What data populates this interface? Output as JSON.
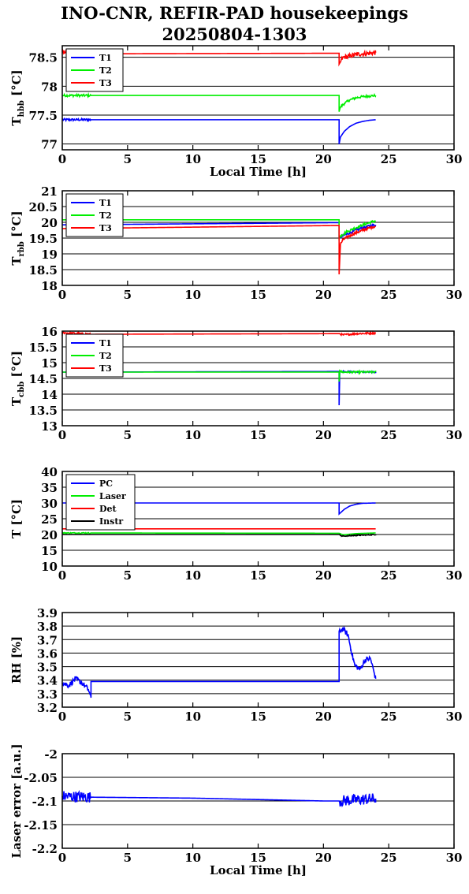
{
  "header": {
    "title_line1": "INO-CNR, REFIR-PAD housekeepings",
    "title_line2": "20250804-1303"
  },
  "colors": {
    "blue": "#0000ff",
    "green": "#00ee00",
    "red": "#ff0000",
    "black": "#000000"
  },
  "chart_data": [
    {
      "type": "line",
      "xlabel": "Local Time [h]",
      "ylabel_main": "T",
      "ylabel_sub": "hbb",
      "ylabel_unit": "[°C]",
      "xlim": [
        0,
        30
      ],
      "ylim": [
        76.9,
        78.7
      ],
      "xticks": [
        0,
        5,
        10,
        15,
        20,
        25,
        30
      ],
      "yticks": [
        77,
        77.5,
        78,
        78.5
      ],
      "ytick_labels": [
        "77",
        "77.5",
        "78",
        "78.5"
      ],
      "grid": true,
      "legend": "top-left",
      "series": [
        {
          "name": "T1",
          "color": "blue",
          "x": [
            0,
            2.2,
            21.2,
            21.2,
            21.3,
            21.6,
            22.0,
            22.5,
            23.0,
            23.5,
            24.0
          ],
          "y": [
            77.42,
            77.42,
            77.42,
            77.0,
            77.12,
            77.22,
            77.3,
            77.36,
            77.39,
            77.41,
            77.42
          ],
          "noise": [
            [
              0,
              2.2,
              0.02
            ]
          ]
        },
        {
          "name": "T2",
          "color": "green",
          "x": [
            0,
            2.2,
            21.2,
            21.2,
            21.3,
            21.6,
            22.0,
            22.5,
            23.0,
            23.5,
            24.0
          ],
          "y": [
            77.84,
            77.84,
            77.84,
            77.56,
            77.64,
            77.7,
            77.76,
            77.8,
            77.82,
            77.83,
            77.84
          ],
          "noise": [
            [
              0,
              2.2,
              0.02
            ],
            [
              21.3,
              24.0,
              0.02
            ]
          ]
        },
        {
          "name": "T3",
          "color": "red",
          "x": [
            0,
            2.2,
            21.2,
            21.2,
            21.5,
            22.0,
            22.5,
            23.0,
            23.5,
            24.0
          ],
          "y": [
            78.59,
            78.56,
            78.57,
            78.38,
            78.5,
            78.52,
            78.55,
            78.56,
            78.57,
            78.58
          ],
          "noise": [
            [
              0,
              2.2,
              0.03
            ],
            [
              21.3,
              24.0,
              0.04
            ]
          ]
        }
      ]
    },
    {
      "type": "line",
      "xlabel": "",
      "ylabel_main": "T",
      "ylabel_sub": "rbb",
      "ylabel_unit": "[°C]",
      "xlim": [
        0,
        30
      ],
      "ylim": [
        18,
        21
      ],
      "xticks": [
        0,
        5,
        10,
        15,
        20,
        25,
        30
      ],
      "yticks": [
        18,
        18.5,
        19,
        19.5,
        20,
        20.5,
        21
      ],
      "ytick_labels": [
        "18",
        "18.5",
        "19",
        "19.5",
        "20",
        "20.5",
        "21"
      ],
      "grid": true,
      "legend": "top-left",
      "series": [
        {
          "name": "T1",
          "color": "blue",
          "x": [
            0,
            21.2,
            21.2,
            21.4,
            21.8,
            22.3,
            22.8,
            23.3,
            24.0
          ],
          "y": [
            19.92,
            19.99,
            19.5,
            19.55,
            19.63,
            19.72,
            19.8,
            19.86,
            19.92
          ],
          "noise": [
            [
              21.2,
              24.0,
              0.04
            ]
          ]
        },
        {
          "name": "T2",
          "color": "green",
          "x": [
            0,
            21.2,
            21.2,
            21.4,
            21.8,
            22.3,
            22.8,
            23.3,
            24.0
          ],
          "y": [
            20.08,
            20.08,
            19.5,
            19.6,
            19.7,
            19.8,
            19.88,
            19.96,
            20.05
          ],
          "noise": [
            [
              21.2,
              24.0,
              0.04
            ]
          ]
        },
        {
          "name": "T3",
          "color": "red",
          "x": [
            0,
            21.2,
            21.2,
            21.3,
            21.5,
            21.9,
            22.4,
            23.0,
            23.5,
            24.0
          ],
          "y": [
            19.8,
            19.9,
            18.35,
            19.3,
            19.45,
            19.55,
            19.65,
            19.75,
            19.82,
            19.88
          ],
          "noise": [
            [
              21.3,
              24.0,
              0.04
            ]
          ]
        }
      ]
    },
    {
      "type": "line",
      "xlabel": "",
      "ylabel_main": "T",
      "ylabel_sub": "cbb",
      "ylabel_unit": "[°C]",
      "xlim": [
        0,
        30
      ],
      "ylim": [
        13,
        16
      ],
      "xticks": [
        0,
        5,
        10,
        15,
        20,
        25,
        30
      ],
      "yticks": [
        13,
        13.5,
        14,
        14.5,
        15,
        15.5,
        16
      ],
      "ytick_labels": [
        "13",
        "13.5",
        "14",
        "14.5",
        "15",
        "15.5",
        "16"
      ],
      "grid": true,
      "legend": "top-left",
      "series": [
        {
          "name": "T1",
          "color": "blue",
          "x": [
            0,
            21.2,
            21.2,
            21.25,
            21.4,
            24.0
          ],
          "y": [
            14.7,
            14.72,
            13.65,
            14.7,
            14.72,
            14.7
          ],
          "noise": [
            [
              21.3,
              24.0,
              0.02
            ]
          ]
        },
        {
          "name": "T2",
          "color": "green",
          "x": [
            0,
            21.2,
            21.2,
            21.25,
            21.4,
            24.0
          ],
          "y": [
            14.7,
            14.7,
            14.4,
            14.75,
            14.7,
            14.7
          ],
          "noise": [
            [
              21.3,
              24.0,
              0.03
            ]
          ]
        },
        {
          "name": "T3",
          "color": "red",
          "x": [
            0,
            2.2,
            21.2,
            21.5,
            22.5,
            24.0
          ],
          "y": [
            15.95,
            15.9,
            15.92,
            15.88,
            15.92,
            15.94
          ],
          "noise": [
            [
              0,
              2.2,
              0.03
            ],
            [
              21.2,
              24.0,
              0.03
            ]
          ]
        }
      ]
    },
    {
      "type": "line",
      "xlabel": "",
      "ylabel_main": "T [°C]",
      "ylabel_sub": "",
      "ylabel_unit": "",
      "xlim": [
        0,
        30
      ],
      "ylim": [
        10,
        40
      ],
      "xticks": [
        0,
        5,
        10,
        15,
        20,
        25,
        30
      ],
      "yticks": [
        10,
        15,
        20,
        25,
        30,
        35,
        40
      ],
      "ytick_labels": [
        "10",
        "15",
        "20",
        "25",
        "30",
        "35",
        "40"
      ],
      "grid": true,
      "legend": "top-left",
      "series": [
        {
          "name": "PC",
          "color": "blue",
          "x": [
            0,
            21.2,
            21.2,
            21.6,
            22.0,
            22.5,
            23.0,
            24.0
          ],
          "y": [
            30.0,
            30.0,
            26.5,
            28.0,
            29.0,
            29.6,
            29.9,
            30.0
          ],
          "noise": []
        },
        {
          "name": "Laser",
          "color": "green",
          "x": [
            0,
            21.2,
            21.5,
            22.5,
            24.0
          ],
          "y": [
            20.5,
            20.4,
            19.9,
            20.3,
            20.5
          ],
          "noise": [
            [
              0,
              2.2,
              0.15
            ]
          ]
        },
        {
          "name": "Det",
          "color": "red",
          "x": [
            0,
            24.0
          ],
          "y": [
            21.8,
            21.8
          ],
          "noise": []
        },
        {
          "name": "Instr",
          "color": "black",
          "x": [
            0,
            21.2,
            21.4,
            22.0,
            23.0,
            24.0
          ],
          "y": [
            20.0,
            20.0,
            19.5,
            19.6,
            19.8,
            20.0
          ],
          "noise": [
            [
              21.2,
              24.0,
              0.15
            ]
          ]
        }
      ]
    },
    {
      "type": "line",
      "xlabel": "",
      "ylabel_main": "RH [%]",
      "ylabel_sub": "",
      "ylabel_unit": "",
      "xlim": [
        0,
        30
      ],
      "ylim": [
        3.2,
        3.9
      ],
      "xticks": [
        0,
        5,
        10,
        15,
        20,
        25,
        30
      ],
      "yticks": [
        3.2,
        3.3,
        3.4,
        3.5,
        3.6,
        3.7,
        3.8,
        3.9
      ],
      "ytick_labels": [
        "3.2",
        "3.3",
        "3.4",
        "3.5",
        "3.6",
        "3.7",
        "3.8",
        "3.9"
      ],
      "grid": true,
      "legend": "none",
      "series": [
        {
          "name": "",
          "color": "blue",
          "x": [
            0,
            0.5,
            1.0,
            1.5,
            2.0,
            2.2,
            2.2,
            21.2,
            21.2,
            21.5,
            21.9,
            22.1,
            22.4,
            22.8,
            23.2,
            23.6,
            23.9,
            24.0
          ],
          "y": [
            3.38,
            3.36,
            3.41,
            3.38,
            3.33,
            3.27,
            3.39,
            3.39,
            3.76,
            3.78,
            3.73,
            3.63,
            3.51,
            3.48,
            3.55,
            3.56,
            3.45,
            3.41
          ],
          "noise": [
            [
              0,
              2.2,
              0.02
            ],
            [
              21.2,
              24.0,
              0.02
            ]
          ]
        }
      ]
    },
    {
      "type": "line",
      "xlabel": "Local Time [h]",
      "ylabel_main": "Laser error [a.u.]",
      "ylabel_sub": "",
      "ylabel_unit": "",
      "xlim": [
        0,
        30
      ],
      "ylim": [
        -2.2,
        -2.0
      ],
      "xticks": [
        0,
        5,
        10,
        15,
        20,
        25,
        30
      ],
      "yticks": [
        -2.2,
        -2.15,
        -2.1,
        -2.05,
        -2
      ],
      "ytick_labels": [
        "-2.2",
        "-2.15",
        "-2.1",
        "-2.05",
        "-2"
      ],
      "grid": true,
      "legend": "none",
      "series": [
        {
          "name": "",
          "color": "blue",
          "x": [
            0,
            2.2,
            10,
            15,
            20,
            21.2,
            24.0
          ],
          "y": [
            -2.09,
            -2.092,
            -2.094,
            -2.097,
            -2.1,
            -2.1,
            -2.095
          ],
          "noise": [
            [
              0,
              2.2,
              0.012
            ],
            [
              21.2,
              24.0,
              0.012
            ]
          ]
        }
      ]
    }
  ]
}
